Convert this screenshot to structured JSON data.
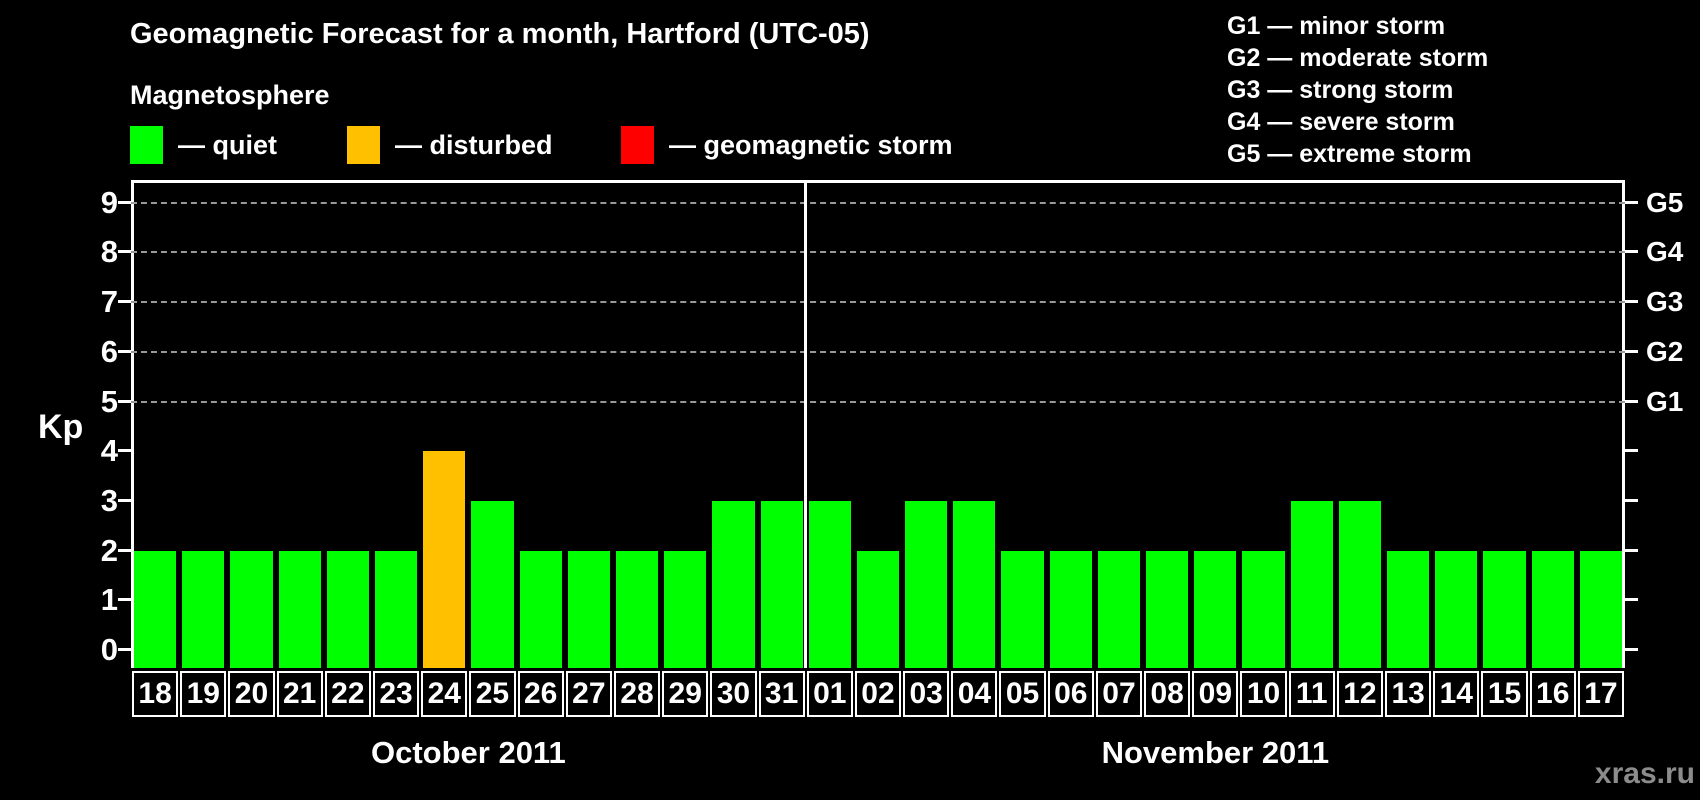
{
  "page": {
    "background": "#000000",
    "watermark": "xras.ru"
  },
  "header": {
    "title": "Geomagnetic Forecast for a month, Hartford (UTC-05)",
    "legend_title": "Magnetosphere",
    "legend_items": [
      {
        "key": "quiet",
        "label": "— quiet",
        "color": "#00FF00"
      },
      {
        "key": "disturbed",
        "label": "— disturbed",
        "color": "#FFC000"
      },
      {
        "key": "storm",
        "label": "— geomagnetic storm",
        "color": "#FF0000"
      }
    ],
    "g_scale_legend": [
      "G1 — minor storm",
      "G2 — moderate storm",
      "G3 — strong storm",
      "G4 — severe storm",
      "G5 — extreme storm"
    ]
  },
  "chart_data": {
    "type": "bar",
    "title": "Geomagnetic Forecast for a month, Hartford (UTC-05)",
    "ylabel": "Kp",
    "ylim": [
      0,
      9
    ],
    "y_ticks": [
      0,
      1,
      2,
      3,
      4,
      5,
      6,
      7,
      8,
      9
    ],
    "grid_kp_levels": [
      5,
      6,
      7,
      8,
      9
    ],
    "right_axis_labels": [
      {
        "kp": 5,
        "label": "G1"
      },
      {
        "kp": 6,
        "label": "G2"
      },
      {
        "kp": 7,
        "label": "G3"
      },
      {
        "kp": 8,
        "label": "G4"
      },
      {
        "kp": 9,
        "label": "G5"
      }
    ],
    "colors": {
      "quiet": "#00FF00",
      "disturbed": "#FFC000",
      "storm": "#FF0000"
    },
    "months": [
      {
        "label": "October 2011",
        "days": [
          {
            "day": "18",
            "kp": 2,
            "state": "quiet"
          },
          {
            "day": "19",
            "kp": 2,
            "state": "quiet"
          },
          {
            "day": "20",
            "kp": 2,
            "state": "quiet"
          },
          {
            "day": "21",
            "kp": 2,
            "state": "quiet"
          },
          {
            "day": "22",
            "kp": 2,
            "state": "quiet"
          },
          {
            "day": "23",
            "kp": 2,
            "state": "quiet"
          },
          {
            "day": "24",
            "kp": 4,
            "state": "disturbed"
          },
          {
            "day": "25",
            "kp": 3,
            "state": "quiet"
          },
          {
            "day": "26",
            "kp": 2,
            "state": "quiet"
          },
          {
            "day": "27",
            "kp": 2,
            "state": "quiet"
          },
          {
            "day": "28",
            "kp": 2,
            "state": "quiet"
          },
          {
            "day": "29",
            "kp": 2,
            "state": "quiet"
          },
          {
            "day": "30",
            "kp": 3,
            "state": "quiet"
          },
          {
            "day": "31",
            "kp": 3,
            "state": "quiet"
          }
        ]
      },
      {
        "label": "November 2011",
        "days": [
          {
            "day": "01",
            "kp": 3,
            "state": "quiet"
          },
          {
            "day": "02",
            "kp": 2,
            "state": "quiet"
          },
          {
            "day": "03",
            "kp": 3,
            "state": "quiet"
          },
          {
            "day": "04",
            "kp": 3,
            "state": "quiet"
          },
          {
            "day": "05",
            "kp": 2,
            "state": "quiet"
          },
          {
            "day": "06",
            "kp": 2,
            "state": "quiet"
          },
          {
            "day": "07",
            "kp": 2,
            "state": "quiet"
          },
          {
            "day": "08",
            "kp": 2,
            "state": "quiet"
          },
          {
            "day": "09",
            "kp": 2,
            "state": "quiet"
          },
          {
            "day": "10",
            "kp": 2,
            "state": "quiet"
          },
          {
            "day": "11",
            "kp": 3,
            "state": "quiet"
          },
          {
            "day": "12",
            "kp": 3,
            "state": "quiet"
          },
          {
            "day": "13",
            "kp": 2,
            "state": "quiet"
          },
          {
            "day": "14",
            "kp": 2,
            "state": "quiet"
          },
          {
            "day": "15",
            "kp": 2,
            "state": "quiet"
          },
          {
            "day": "16",
            "kp": 2,
            "state": "quiet"
          },
          {
            "day": "17",
            "kp": 2,
            "state": "quiet"
          }
        ]
      }
    ]
  }
}
